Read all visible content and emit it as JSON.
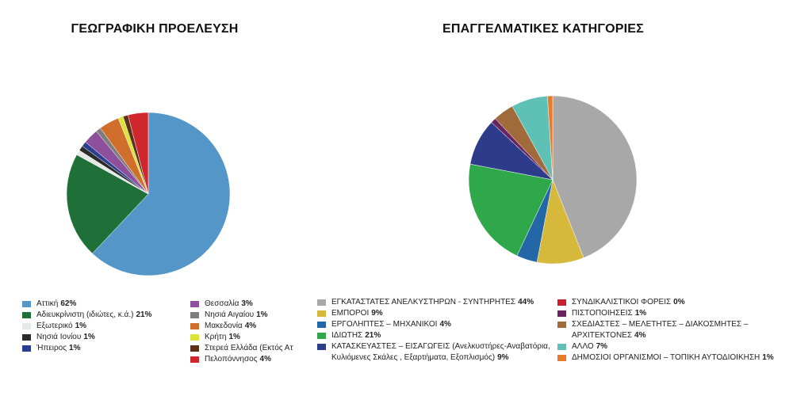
{
  "chart_data": [
    {
      "type": "pie",
      "title": "ΓΕΩΓΡΑΦΙΚΗ ΠΡΟΕΛΕΥΣΗ",
      "categories": [
        "Αττική",
        "Αδιευκρίνιστη (ιδιώτες, κ.ά.)",
        "Εξωτερικό",
        "Νησιά Ιονίου",
        "Ήπειρος",
        "Θεσσαλία",
        "Νησιά Αιγαίου",
        "Μακεδονία",
        "Κρήτη",
        "Στερεά Ελλάδα (Εκτός Αττική",
        "Πελοπόννησος"
      ],
      "values": [
        62,
        21,
        1,
        1,
        1,
        3,
        1,
        4,
        1,
        1,
        4
      ],
      "value_labels": [
        "62%",
        "21%",
        "1%",
        "1%",
        "1%",
        "3%",
        "1%",
        "4%",
        "1%",
        null,
        "4%"
      ],
      "colors": [
        "#5596c8",
        "#1e7038",
        "#e4e9e6",
        "#2b2b2b",
        "#2a3d8f",
        "#8e4f9c",
        "#7d7d7d",
        "#d06f2b",
        "#dce23a",
        "#5a3318",
        "#d0262e"
      ]
    },
    {
      "type": "pie",
      "title": "ΕΠΑΓΓΕΛΜΑΤΙΚΕΣ ΚΑΤΗΓΟΡΙΕΣ",
      "categories": [
        "ΕΓΚΑΤΑΣΤΑΤΕΣ ΑΝΕΛΚΥΣΤΗΡΩΝ - ΣΥΝΤΗΡΗΤΕΣ",
        "ΕΜΠΟΡΟΙ",
        "ΕΡΓΟΛΗΠΤΕΣ – ΜΗΧΑΝΙΚΟΙ",
        "ΙΔΙΩΤΗΣ",
        "ΚΑΤΑΣΚΕΥΑΣΤΕΣ – ΕΙΣΑΓΩΓΕΙΣ (Ανελκυστήρες-Αναβατόρια, Κυλιόμενες Σκάλες , Εξαρτήματα, Εξοπλισμός)",
        "ΣΥΝΔΙΚΑΛΙΣΤΙΚΟΙ ΦΟΡΕΙΣ",
        "ΠΙΣΤΟΠΟΙΗΣΕΙΣ",
        "ΣΧΕΔΙΑΣΤΕΣ – ΜΕΛΕΤΗΤΕΣ – ΔΙΑΚΟΣΜΗΤΕΣ – ΑΡΧΙΤΕΚΤΟΝΕΣ",
        "ΑΛΛΟ",
        "ΔΗΜΟΣΙΟΙ ΟΡΓΑΝΙΣΜΟΙ – ΤΟΠΙΚΗ ΑΥΤΟΔΙΟΙΚΗΣΗ"
      ],
      "values": [
        44,
        9,
        4,
        21,
        9,
        0,
        1,
        4,
        7,
        1
      ],
      "value_labels": [
        "44%",
        "9%",
        "4%",
        "21%",
        "9%",
        "0%",
        "1%",
        "4%",
        "7%",
        "1%"
      ],
      "colors": [
        "#a8a8a8",
        "#d6b83a",
        "#2367a6",
        "#2ea84a",
        "#2c3c8a",
        "#c8202e",
        "#6a2560",
        "#a06a3a",
        "#5fc0b6",
        "#e87a2a"
      ]
    }
  ]
}
